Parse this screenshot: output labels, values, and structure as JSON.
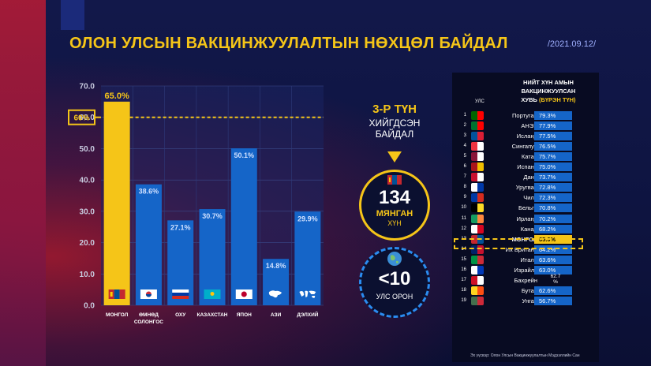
{
  "title": "ОЛОН УЛСЫН ВАКЦИНЖУУЛАЛТЫН НӨХЦӨЛ БАЙДАЛ",
  "date": "/2021.09.12/",
  "chart_data": {
    "type": "bar",
    "categories": [
      "МОНГОЛ",
      "ӨМНӨД СОЛОНГОС",
      "ОХУ",
      "КАЗАХСТАН",
      "ЯПОН",
      "АЗИ",
      "ДЭЛХИЙ"
    ],
    "category_lines": [
      [
        "МОНГОЛ"
      ],
      [
        "ӨМНӨД",
        "СОЛОНГОС"
      ],
      [
        "ОХУ"
      ],
      [
        "КАЗАХСТАН"
      ],
      [
        "ЯПОН"
      ],
      [
        "АЗИ"
      ],
      [
        "ДЭЛХИЙ"
      ]
    ],
    "values": [
      65.0,
      38.6,
      27.1,
      30.7,
      50.1,
      14.8,
      29.9
    ],
    "value_labels": [
      "65.0%",
      "38.6%",
      "27.1%",
      "30.7%",
      "50.1%",
      "14.8%",
      "29.9%"
    ],
    "ylim": [
      0,
      70
    ],
    "yticks": [
      "0.0",
      "10.0",
      "20.0",
      "30.0",
      "40.0",
      "50.0",
      "60.0",
      "70.0"
    ],
    "threshold_label": "60%",
    "threshold_value": 60,
    "highlight_color": "#f5c518",
    "bar_color": "#1565c8",
    "grid": true
  },
  "callout": {
    "rank": "3-Р ТҮН",
    "rank_line2": "ХИЙГДСЭН",
    "rank_line3": "БАЙДАЛ",
    "people_number": "134",
    "people_unit": "МЯНГАН",
    "people_suffix": "ХҮН",
    "countries_number": "<10",
    "countries_label": "УЛС ОРОН"
  },
  "table": {
    "title_line1": "НИЙТ ХҮН АМЫН",
    "title_line2": "ВАКЦИНЖУУЛСАН",
    "title_line3": "ХУВЬ ",
    "title_highlight": "(БҮРЭН ТҮН)",
    "col_country": "УЛС",
    "rows": [
      {
        "rank": "1",
        "country": "Португал",
        "value": "79.3%"
      },
      {
        "rank": "2",
        "country": "АНЭУ",
        "value": "77.9%"
      },
      {
        "rank": "3",
        "country": "Исланд",
        "value": "77.5%"
      },
      {
        "rank": "4",
        "country": "Сингапур",
        "value": "76.5%"
      },
      {
        "rank": "5",
        "country": "Катар",
        "value": "75.7%"
      },
      {
        "rank": "6",
        "country": "Испани",
        "value": "75.0%"
      },
      {
        "rank": "7",
        "country": "Дани",
        "value": "73.7%"
      },
      {
        "rank": "8",
        "country": "Уругвай",
        "value": "72.8%"
      },
      {
        "rank": "9",
        "country": "Чили",
        "value": "72.3%"
      },
      {
        "rank": "10",
        "country": "Бельги",
        "value": "70.8%"
      },
      {
        "rank": "11",
        "country": "Ирланд",
        "value": "70.2%"
      },
      {
        "rank": "12",
        "country": "Канад",
        "value": "68.2%"
      },
      {
        "rank": "13",
        "country": "МОНГОЛ",
        "value": "65.0%"
      },
      {
        "rank": "14",
        "country": "Их Британи",
        "value": "64.2%"
      },
      {
        "rank": "15",
        "country": "Итали",
        "value": "63.6%"
      },
      {
        "rank": "16",
        "country": "Израйль",
        "value": "63.0%"
      },
      {
        "rank": "17",
        "country": "Бахрейн",
        "value": "62.7\n%"
      },
      {
        "rank": "18",
        "country": "Бутан",
        "value": "62.6%"
      },
      {
        "rank": "19",
        "country": "Унгар",
        "value": "56.7%"
      }
    ]
  },
  "footer": "Эх үүсвэр: Олон Улсын Вакцинжуулалтын Мэдээллийн Сан",
  "colors": {
    "accent": "#f5c518",
    "bar": "#1565c8",
    "panel": "#080b22"
  }
}
